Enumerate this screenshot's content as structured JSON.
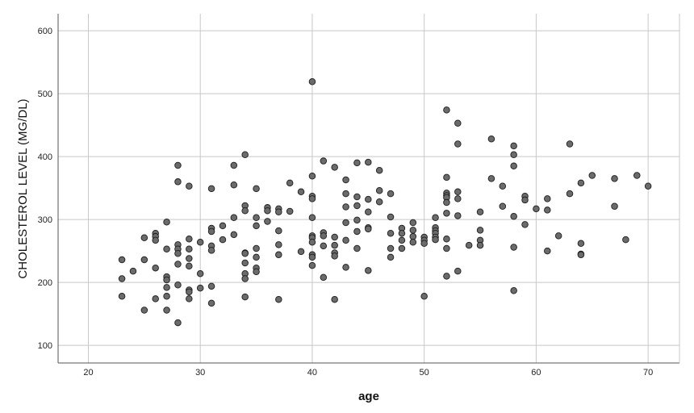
{
  "chart_data": {
    "type": "scatter",
    "title": "",
    "xlabel": "age",
    "ylabel": "CHOLESTEROL LEVEL (MG/DL)",
    "xlim": [
      17.3,
      72.8
    ],
    "ylim": [
      72,
      627
    ],
    "xticks": [
      20,
      30,
      40,
      50,
      60,
      70
    ],
    "yticks": [
      100,
      200,
      300,
      400,
      500,
      600
    ],
    "grid": true,
    "colors": {
      "marker_fill": "#6b6b6b",
      "marker_edge": "#1e1e1e",
      "grid": "#c8c8c8",
      "axis": "#555555"
    },
    "points": [
      [
        23,
        236
      ],
      [
        23,
        206
      ],
      [
        23,
        178
      ],
      [
        24,
        218
      ],
      [
        25,
        271
      ],
      [
        25,
        236
      ],
      [
        25,
        156
      ],
      [
        26,
        278
      ],
      [
        26,
        273
      ],
      [
        26,
        267
      ],
      [
        26,
        223
      ],
      [
        26,
        174
      ],
      [
        27,
        296
      ],
      [
        27,
        253
      ],
      [
        27,
        209
      ],
      [
        27,
        204
      ],
      [
        27,
        192
      ],
      [
        27,
        178
      ],
      [
        27,
        156
      ],
      [
        28,
        386
      ],
      [
        28,
        360
      ],
      [
        28,
        260
      ],
      [
        28,
        253
      ],
      [
        28,
        246
      ],
      [
        28,
        229
      ],
      [
        28,
        196
      ],
      [
        28,
        136
      ],
      [
        29,
        353
      ],
      [
        29,
        269
      ],
      [
        29,
        253
      ],
      [
        29,
        238
      ],
      [
        29,
        226
      ],
      [
        29,
        188
      ],
      [
        29,
        185
      ],
      [
        29,
        174
      ],
      [
        30,
        264
      ],
      [
        30,
        214
      ],
      [
        30,
        191
      ],
      [
        31,
        349
      ],
      [
        31,
        286
      ],
      [
        31,
        281
      ],
      [
        31,
        258
      ],
      [
        31,
        251
      ],
      [
        31,
        194
      ],
      [
        31,
        167
      ],
      [
        32,
        290
      ],
      [
        32,
        268
      ],
      [
        33,
        386
      ],
      [
        33,
        355
      ],
      [
        33,
        303
      ],
      [
        33,
        276
      ],
      [
        34,
        403
      ],
      [
        34,
        322
      ],
      [
        34,
        314
      ],
      [
        34,
        247
      ],
      [
        34,
        246
      ],
      [
        34,
        231
      ],
      [
        34,
        214
      ],
      [
        34,
        206
      ],
      [
        34,
        177
      ],
      [
        35,
        349
      ],
      [
        35,
        303
      ],
      [
        35,
        290
      ],
      [
        35,
        254
      ],
      [
        35,
        240
      ],
      [
        35,
        223
      ],
      [
        35,
        217
      ],
      [
        36,
        319
      ],
      [
        36,
        314
      ],
      [
        36,
        297
      ],
      [
        37,
        317
      ],
      [
        37,
        312
      ],
      [
        37,
        282
      ],
      [
        37,
        260
      ],
      [
        37,
        244
      ],
      [
        37,
        173
      ],
      [
        38,
        358
      ],
      [
        38,
        313
      ],
      [
        39,
        344
      ],
      [
        39,
        249
      ],
      [
        40,
        519
      ],
      [
        40,
        369
      ],
      [
        40,
        337
      ],
      [
        40,
        333
      ],
      [
        40,
        303
      ],
      [
        40,
        274
      ],
      [
        40,
        271
      ],
      [
        40,
        264
      ],
      [
        40,
        244
      ],
      [
        40,
        240
      ],
      [
        40,
        227
      ],
      [
        41,
        393
      ],
      [
        41,
        279
      ],
      [
        41,
        274
      ],
      [
        41,
        258
      ],
      [
        41,
        208
      ],
      [
        42,
        383
      ],
      [
        42,
        272
      ],
      [
        42,
        259
      ],
      [
        42,
        247
      ],
      [
        42,
        242
      ],
      [
        42,
        173
      ],
      [
        43,
        363
      ],
      [
        43,
        341
      ],
      [
        43,
        320
      ],
      [
        43,
        295
      ],
      [
        43,
        267
      ],
      [
        43,
        224
      ],
      [
        44,
        390
      ],
      [
        44,
        336
      ],
      [
        44,
        322
      ],
      [
        44,
        299
      ],
      [
        44,
        281
      ],
      [
        44,
        254
      ],
      [
        45,
        391
      ],
      [
        45,
        332
      ],
      [
        45,
        312
      ],
      [
        45,
        287
      ],
      [
        45,
        285
      ],
      [
        45,
        219
      ],
      [
        46,
        378
      ],
      [
        46,
        346
      ],
      [
        46,
        328
      ],
      [
        47,
        341
      ],
      [
        47,
        304
      ],
      [
        47,
        278
      ],
      [
        47,
        254
      ],
      [
        47,
        240
      ],
      [
        48,
        286
      ],
      [
        48,
        278
      ],
      [
        48,
        267
      ],
      [
        48,
        254
      ],
      [
        49,
        295
      ],
      [
        49,
        283
      ],
      [
        49,
        273
      ],
      [
        49,
        264
      ],
      [
        50,
        272
      ],
      [
        50,
        267
      ],
      [
        50,
        262
      ],
      [
        50,
        178
      ],
      [
        51,
        303
      ],
      [
        51,
        287
      ],
      [
        51,
        282
      ],
      [
        51,
        278
      ],
      [
        51,
        272
      ],
      [
        51,
        268
      ],
      [
        52,
        474
      ],
      [
        52,
        367
      ],
      [
        52,
        342
      ],
      [
        52,
        338
      ],
      [
        52,
        335
      ],
      [
        52,
        327
      ],
      [
        52,
        310
      ],
      [
        52,
        269
      ],
      [
        52,
        254
      ],
      [
        52,
        210
      ],
      [
        53,
        453
      ],
      [
        53,
        420
      ],
      [
        53,
        344
      ],
      [
        53,
        333
      ],
      [
        53,
        306
      ],
      [
        53,
        218
      ],
      [
        54,
        259
      ],
      [
        55,
        312
      ],
      [
        55,
        283
      ],
      [
        55,
        267
      ],
      [
        55,
        259
      ],
      [
        56,
        428
      ],
      [
        56,
        365
      ],
      [
        57,
        353
      ],
      [
        57,
        321
      ],
      [
        58,
        417
      ],
      [
        58,
        403
      ],
      [
        58,
        385
      ],
      [
        58,
        305
      ],
      [
        58,
        256
      ],
      [
        58,
        187
      ],
      [
        59,
        337
      ],
      [
        59,
        331
      ],
      [
        59,
        292
      ],
      [
        60,
        317
      ],
      [
        61,
        333
      ],
      [
        61,
        315
      ],
      [
        61,
        250
      ],
      [
        62,
        274
      ],
      [
        63,
        420
      ],
      [
        63,
        341
      ],
      [
        64,
        358
      ],
      [
        64,
        262
      ],
      [
        64,
        245
      ],
      [
        64,
        244
      ],
      [
        65,
        370
      ],
      [
        67,
        365
      ],
      [
        67,
        321
      ],
      [
        68,
        268
      ],
      [
        69,
        370
      ],
      [
        70,
        353
      ]
    ]
  }
}
